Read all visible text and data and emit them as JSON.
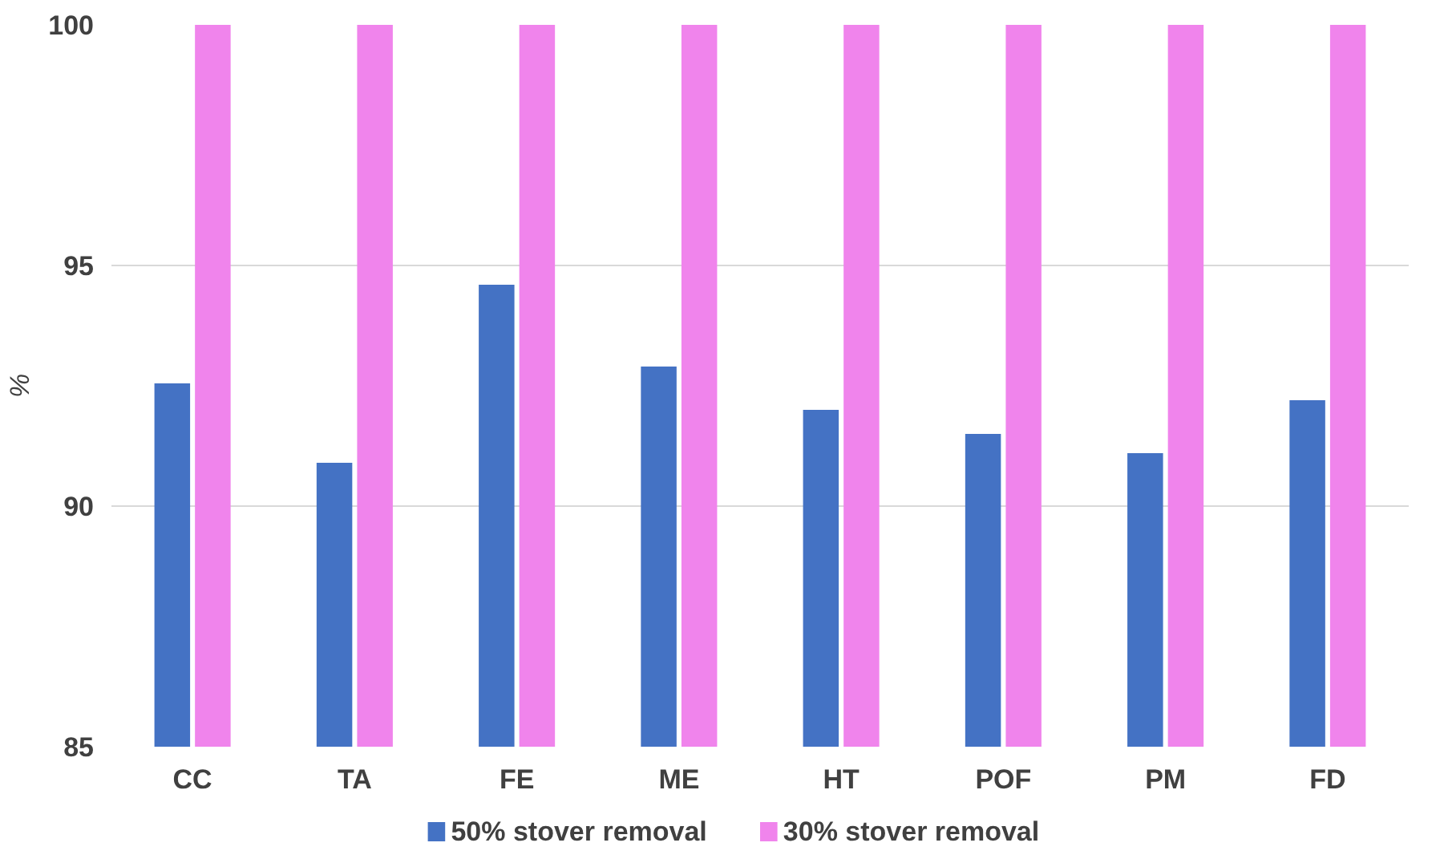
{
  "chart_data": {
    "type": "bar",
    "ylabel": "%",
    "categories": [
      "CC",
      "TA",
      "FE",
      "ME",
      "HT",
      "POF",
      "PM",
      "FD"
    ],
    "series": [
      {
        "name": "50% stover removal",
        "color": "#4472c4",
        "values": [
          92.55,
          90.9,
          94.6,
          92.9,
          92.0,
          91.5,
          91.1,
          92.2
        ]
      },
      {
        "name": "30% stover removal",
        "color": "#f084ec",
        "values": [
          100,
          100,
          100,
          100,
          100,
          100,
          100,
          100
        ]
      }
    ],
    "ylim": [
      85,
      100
    ],
    "yticks": [
      85,
      90,
      95,
      100
    ],
    "grid": "y",
    "legend": "bottom"
  }
}
